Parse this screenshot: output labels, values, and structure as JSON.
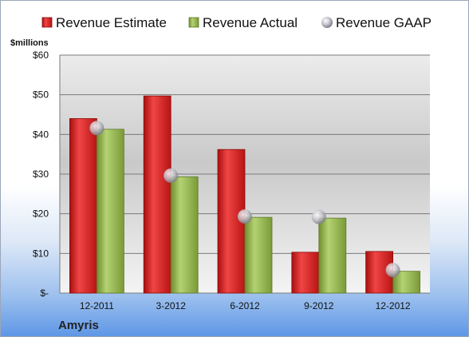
{
  "chart_data": {
    "type": "bar",
    "unit_label": "$millions",
    "company": "Amyris",
    "categories": [
      "12-2011",
      "3-2012",
      "6-2012",
      "9-2012",
      "12-2012"
    ],
    "series": [
      {
        "name": "Revenue Estimate",
        "kind": "bar",
        "color": "#d42020",
        "values": [
          44,
          49.7,
          36.2,
          10.3,
          10.5
        ]
      },
      {
        "name": "Revenue Actual",
        "kind": "bar",
        "color": "#8eb04a",
        "values": [
          41.3,
          29.3,
          19.1,
          18.9,
          5.5
        ]
      },
      {
        "name": "Revenue GAAP",
        "kind": "marker",
        "color": "#b8b8c0",
        "values": [
          41.6,
          29.6,
          19.3,
          19.2,
          5.8
        ]
      }
    ],
    "ylim": [
      0,
      60
    ],
    "yticks": [
      0,
      10,
      20,
      30,
      40,
      50,
      60
    ],
    "ytick_labels": [
      "$-",
      "$10",
      "$20",
      "$30",
      "$40",
      "$50",
      "$60"
    ],
    "grid": true,
    "legend_position": "top"
  }
}
